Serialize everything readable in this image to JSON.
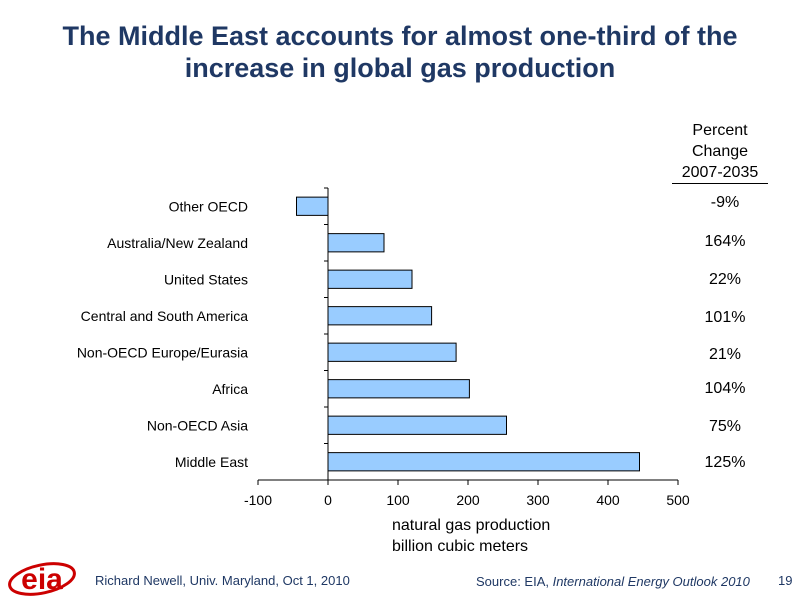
{
  "slide": {
    "title_line1": "The Middle East accounts for almost one-third of the",
    "title_line2": "increase in global gas production",
    "percent_header": [
      "Percent",
      "Change",
      "2007-2035"
    ],
    "xlabel_line1": "natural gas production",
    "xlabel_line2": "billion cubic meters",
    "footer_author": "Richard Newell, Univ. Maryland, Oct 1, 2010",
    "footer_source_prefix": "Source:  EIA, ",
    "footer_source_title": "International Energy Outlook 2010",
    "page_number": "19",
    "logo_text": "eia"
  },
  "chart_data": {
    "type": "bar",
    "orientation": "horizontal",
    "categories": [
      "Other OECD",
      "Australia/New Zealand",
      "United States",
      "Central and South America",
      "Non-OECD Europe/Eurasia",
      "Africa",
      "Non-OECD Asia",
      "Middle East"
    ],
    "values": [
      -45,
      80,
      120,
      148,
      183,
      202,
      255,
      445
    ],
    "percent_change": [
      "-9%",
      "164%",
      "22%",
      "101%",
      "21%",
      "104%",
      "75%",
      "125%"
    ],
    "xlim": [
      -100,
      500
    ],
    "xticks": [
      -100,
      0,
      100,
      200,
      300,
      400,
      500
    ],
    "bar_color": "#99ccff",
    "bar_edge_color": "#000000",
    "grid": false
  }
}
